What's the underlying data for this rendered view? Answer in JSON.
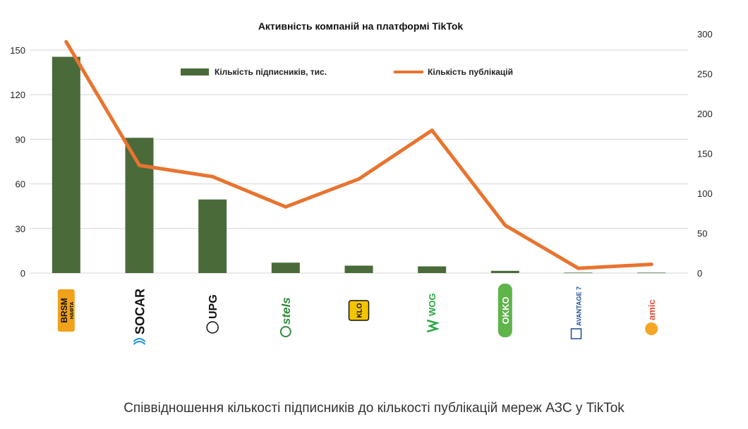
{
  "caption": "Співвідношення кількості підписників до кількості публікацій мереж АЗС у TikTok",
  "chart_data": {
    "type": "bar",
    "title": "Активність компаній на платформі TikTok",
    "categories": [
      "BRSM-Nafta",
      "SOCAR",
      "UPG",
      "Stels",
      "KLO",
      "WOG",
      "OKKO",
      "Avantage 7",
      "Amic Energy"
    ],
    "series": [
      {
        "name": "Кількість підписників, тис.",
        "type": "bar",
        "axis": "left",
        "color": "#4a6a3a",
        "values": [
          145.5,
          91,
          49.5,
          7,
          5,
          4.5,
          1.5,
          0.3,
          0.3
        ]
      },
      {
        "name": "Кількість публікацій",
        "type": "line",
        "axis": "right",
        "color": "#e8742f",
        "values": [
          290,
          135,
          121,
          83,
          118,
          179,
          60,
          6,
          11
        ]
      }
    ],
    "y_left": {
      "ticks": [
        "0",
        "30",
        "60",
        "90",
        "120",
        "150"
      ],
      "lim": [
        0,
        150
      ]
    },
    "y_right": {
      "ticks": [
        "0",
        "50",
        "100",
        "150",
        "200",
        "250",
        "300"
      ],
      "lim": [
        0,
        300
      ]
    },
    "grid": true,
    "legend_position": "top"
  },
  "logos": [
    {
      "name": "brsm-logo",
      "text": "BRSM",
      "sub": "НАФТА",
      "color": "#f0a21a"
    },
    {
      "name": "socar-logo",
      "text": "SOCAR",
      "color": "#111111"
    },
    {
      "name": "upg-logo",
      "text": "UPG",
      "color": "#111111"
    },
    {
      "name": "stels-logo",
      "text": "stels",
      "color": "#2e8b3a"
    },
    {
      "name": "klo-logo",
      "text": "KLO",
      "color": "#f5c400"
    },
    {
      "name": "wog-logo",
      "text": "WOG",
      "color": "#2aa845"
    },
    {
      "name": "okko-logo",
      "text": "OKKO",
      "color": "#5fb44a"
    },
    {
      "name": "avantage-logo",
      "text": "AVANTAGE 7",
      "color": "#1d4f91"
    },
    {
      "name": "amic-logo",
      "text": "amic",
      "color": "#e0503a"
    }
  ]
}
